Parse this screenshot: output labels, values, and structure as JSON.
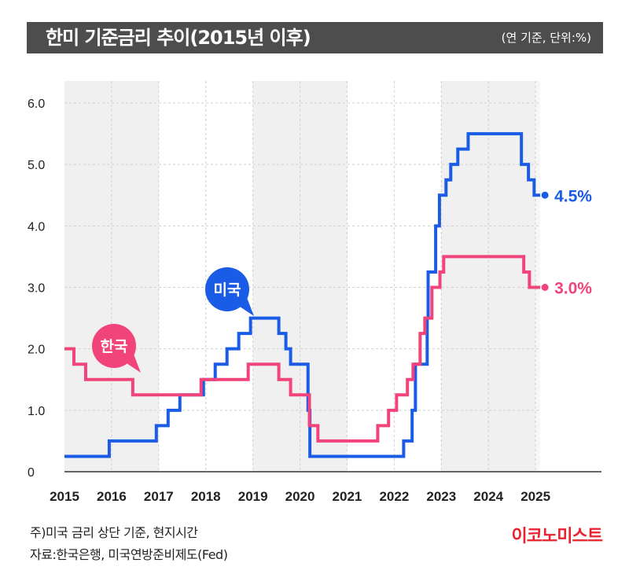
{
  "header": {
    "title": "한미 기준금리 추이(2015년 이후)",
    "unit_note": "(연 기준, 단위:%)"
  },
  "footer": {
    "note1": "주)미국 금리 상단 기준, 현지시간",
    "note2": "자료:한국은행, 미국연방준비제도(Fed)",
    "brand": "이코노미스트"
  },
  "chart_data": {
    "type": "line",
    "title": "한미 기준금리 추이(2015년 이후)",
    "xlabel": "",
    "ylabel": "",
    "xlim": [
      2015,
      2026.4
    ],
    "ylim": [
      0,
      6.0
    ],
    "x_ticks": [
      "2015",
      "2016",
      "2017",
      "2018",
      "2019",
      "2020",
      "2021",
      "2022",
      "2023",
      "2024",
      "2025"
    ],
    "y_ticks": [
      "0",
      "1.0",
      "2.0",
      "3.0",
      "4.0",
      "5.0",
      "6.0"
    ],
    "grid": true,
    "series": [
      {
        "name": "미국",
        "color": "#1a5ce6",
        "end_label": "4.5%",
        "step_points": [
          [
            2015.0,
            0.25
          ],
          [
            2015.95,
            0.5
          ],
          [
            2016.95,
            0.75
          ],
          [
            2017.2,
            1.0
          ],
          [
            2017.45,
            1.25
          ],
          [
            2017.95,
            1.5
          ],
          [
            2018.2,
            1.75
          ],
          [
            2018.45,
            2.0
          ],
          [
            2018.7,
            2.25
          ],
          [
            2018.95,
            2.5
          ],
          [
            2019.55,
            2.25
          ],
          [
            2019.7,
            2.0
          ],
          [
            2019.8,
            1.75
          ],
          [
            2020.17,
            1.0
          ],
          [
            2020.21,
            0.25
          ],
          [
            2022.2,
            0.5
          ],
          [
            2022.38,
            1.0
          ],
          [
            2022.45,
            1.75
          ],
          [
            2022.7,
            2.5
          ],
          [
            2022.72,
            3.25
          ],
          [
            2022.88,
            4.0
          ],
          [
            2022.96,
            4.5
          ],
          [
            2023.1,
            4.75
          ],
          [
            2023.2,
            5.0
          ],
          [
            2023.35,
            5.25
          ],
          [
            2023.57,
            5.5
          ],
          [
            2024.7,
            5.0
          ],
          [
            2024.85,
            4.75
          ],
          [
            2024.97,
            4.5
          ],
          [
            2025.1,
            4.5
          ]
        ]
      },
      {
        "name": "한국",
        "color": "#f0447a",
        "end_label": "3.0%",
        "step_points": [
          [
            2015.0,
            2.0
          ],
          [
            2015.2,
            1.75
          ],
          [
            2015.45,
            1.5
          ],
          [
            2016.45,
            1.25
          ],
          [
            2017.9,
            1.5
          ],
          [
            2018.9,
            1.75
          ],
          [
            2019.55,
            1.5
          ],
          [
            2019.8,
            1.25
          ],
          [
            2020.2,
            0.75
          ],
          [
            2020.38,
            0.5
          ],
          [
            2021.65,
            0.75
          ],
          [
            2021.88,
            1.0
          ],
          [
            2022.05,
            1.25
          ],
          [
            2022.28,
            1.5
          ],
          [
            2022.4,
            1.75
          ],
          [
            2022.55,
            2.25
          ],
          [
            2022.65,
            2.5
          ],
          [
            2022.8,
            3.0
          ],
          [
            2022.97,
            3.25
          ],
          [
            2023.05,
            3.5
          ],
          [
            2024.75,
            3.25
          ],
          [
            2024.87,
            3.0
          ],
          [
            2025.1,
            3.0
          ]
        ]
      }
    ]
  }
}
